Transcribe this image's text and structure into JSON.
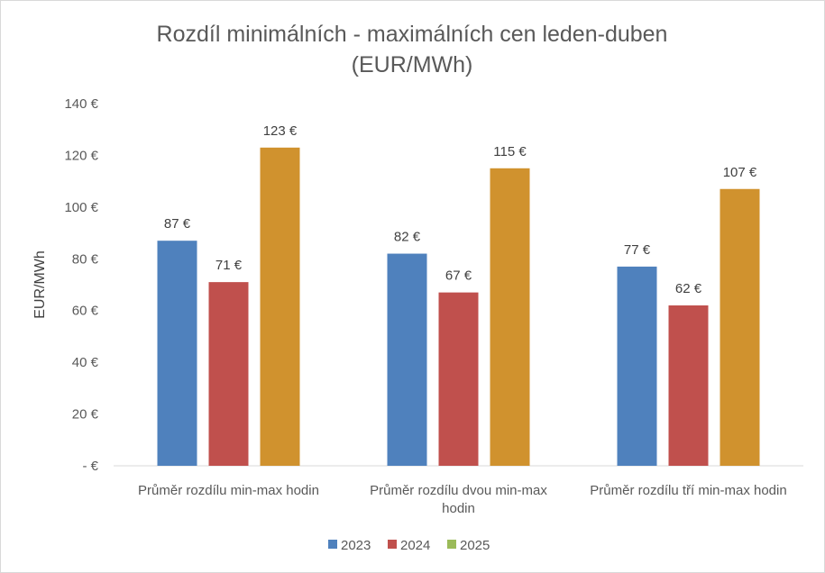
{
  "chart_data": {
    "type": "bar",
    "title_lines": [
      "Rozdíl minimálních  - maximálních cen leden-duben",
      "(EUR/MWh)"
    ],
    "ylabel": "EUR/MWh",
    "xlabel": "",
    "ylim": [
      0,
      140
    ],
    "y_ticks": [
      0,
      20,
      40,
      60,
      80,
      100,
      120,
      140
    ],
    "y_tick_labels": [
      "-  €",
      "20 €",
      "40 €",
      "60 €",
      "80 €",
      "100 €",
      "120 €",
      "140 €"
    ],
    "categories": [
      [
        "Průměr rozdílu min-max hodin"
      ],
      [
        "Průměr rozdílu dvou min-max",
        "hodin"
      ],
      [
        "Průměr rozdílu tří min-max hodin"
      ]
    ],
    "series": [
      {
        "name": "2023",
        "color": "#4f81bd",
        "values": [
          87,
          82,
          77
        ],
        "labels": [
          "87 €",
          "82 €",
          "77 €"
        ]
      },
      {
        "name": "2024",
        "color": "#c0504d",
        "values": [
          71,
          67,
          62
        ],
        "labels": [
          "71 €",
          "67 €",
          "62 €"
        ]
      },
      {
        "name": "2025",
        "color": "#d0922e",
        "legend_color": "#9bbb59",
        "values": [
          123,
          115,
          107
        ],
        "labels": [
          "123 €",
          "115 €",
          "107 €"
        ]
      }
    ],
    "grid": false,
    "legend_position": "bottom"
  }
}
